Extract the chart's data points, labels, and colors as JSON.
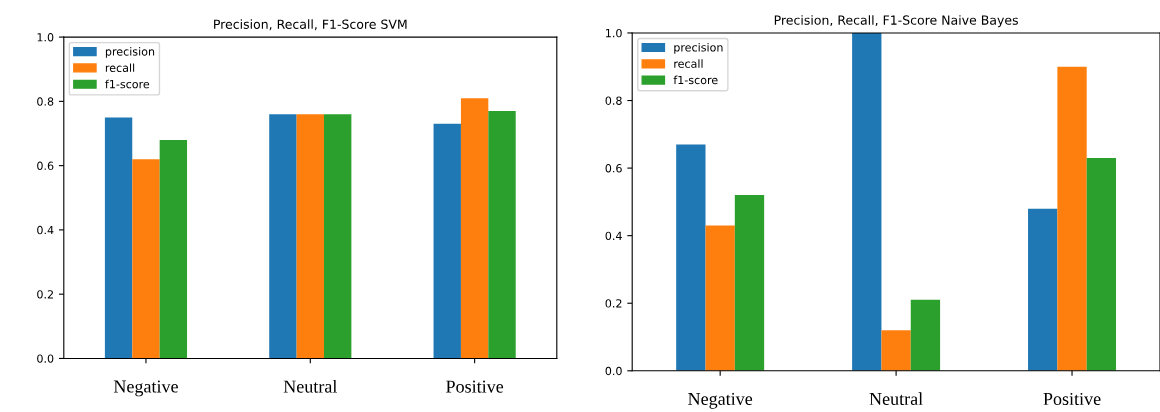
{
  "chart_data": [
    {
      "type": "bar",
      "title": "Precision, Recall, F1-Score SVM",
      "categories": [
        "Negative",
        "Neutral",
        "Positive"
      ],
      "series": [
        {
          "name": "precision",
          "color": "#1f77b4",
          "values": [
            0.75,
            0.76,
            0.73
          ]
        },
        {
          "name": "recall",
          "color": "#ff7f0e",
          "values": [
            0.62,
            0.76,
            0.81
          ]
        },
        {
          "name": "f1-score",
          "color": "#2ca02c",
          "values": [
            0.68,
            0.76,
            0.77
          ]
        }
      ],
      "ylim": [
        0,
        1
      ],
      "yticks": [
        {
          "value": 0,
          "label": "0.0"
        },
        {
          "value": 0.2,
          "label": "0.2"
        },
        {
          "value": 0.4,
          "label": "0.4"
        },
        {
          "value": 0.6,
          "label": "0.6"
        },
        {
          "value": 0.8,
          "label": "0.8"
        },
        {
          "value": 1,
          "label": "1.0"
        }
      ],
      "legend": "top left",
      "grid": false
    },
    {
      "type": "bar",
      "title": "Precision, Recall, F1-Score Naive Bayes",
      "categories": [
        "Negative",
        "Neutral",
        "Positive"
      ],
      "series": [
        {
          "name": "precision",
          "color": "#1f77b4",
          "values": [
            0.67,
            1.0,
            0.48
          ]
        },
        {
          "name": "recall",
          "color": "#ff7f0e",
          "values": [
            0.43,
            0.12,
            0.9
          ]
        },
        {
          "name": "f1-score",
          "color": "#2ca02c",
          "values": [
            0.52,
            0.21,
            0.63
          ]
        }
      ],
      "ylim": [
        0,
        1
      ],
      "yticks": [
        {
          "value": 0,
          "label": "0.0"
        },
        {
          "value": 0.2,
          "label": "0.2"
        },
        {
          "value": 0.4,
          "label": "0.4"
        },
        {
          "value": 0.6,
          "label": "0.6"
        },
        {
          "value": 0.8,
          "label": "0.8"
        },
        {
          "value": 1,
          "label": "1.0"
        }
      ],
      "legend": "top left",
      "grid": false
    }
  ]
}
